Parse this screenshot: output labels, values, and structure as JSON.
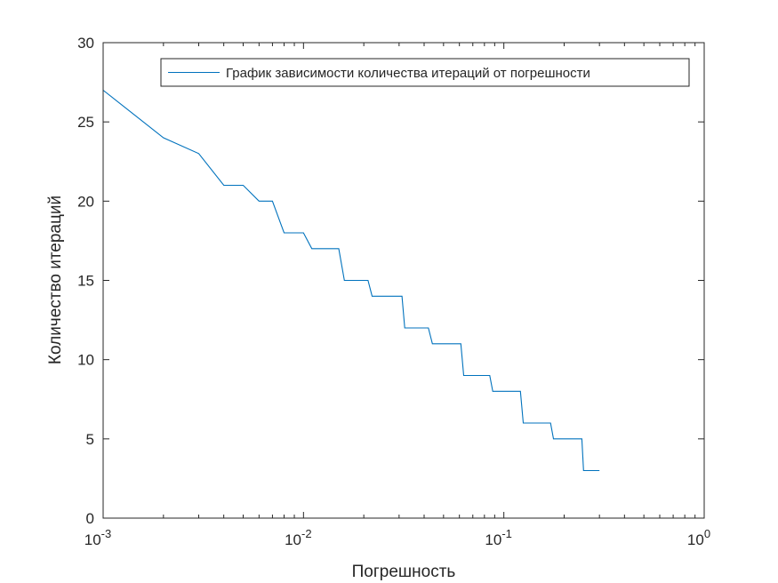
{
  "chart_data": {
    "type": "line",
    "title": "",
    "xlabel": "Погрешность",
    "ylabel": "Количество итераций",
    "xscale": "log",
    "xlim": [
      0.001,
      1
    ],
    "ylim": [
      0,
      30
    ],
    "grid": false,
    "legend_position": "top-right",
    "colors": {
      "series": "#0072BD",
      "axes": "#262626",
      "background": "#ffffff"
    },
    "x_ticks": [
      {
        "value": 0.001,
        "base": "10",
        "exponent": "-3"
      },
      {
        "value": 0.01,
        "base": "10",
        "exponent": "-2"
      },
      {
        "value": 0.1,
        "base": "10",
        "exponent": "-1"
      },
      {
        "value": 1,
        "base": "10",
        "exponent": "0"
      }
    ],
    "y_ticks": [
      {
        "value": 0,
        "label": "0"
      },
      {
        "value": 5,
        "label": "5"
      },
      {
        "value": 10,
        "label": "10"
      },
      {
        "value": 15,
        "label": "15"
      },
      {
        "value": 20,
        "label": "20"
      },
      {
        "value": 25,
        "label": "25"
      },
      {
        "value": 30,
        "label": "30"
      }
    ],
    "series": [
      {
        "name": "График зависимости количества итераций от погрешности",
        "points": [
          [
            0.001,
            27
          ],
          [
            0.002,
            24
          ],
          [
            0.003,
            23
          ],
          [
            0.004,
            21
          ],
          [
            0.005,
            21
          ],
          [
            0.006,
            20
          ],
          [
            0.007,
            20
          ],
          [
            0.008,
            18
          ],
          [
            0.01,
            18
          ],
          [
            0.011,
            17
          ],
          [
            0.015,
            17
          ],
          [
            0.016,
            15
          ],
          [
            0.021,
            15
          ],
          [
            0.022,
            14
          ],
          [
            0.031,
            14
          ],
          [
            0.032,
            12
          ],
          [
            0.042,
            12
          ],
          [
            0.044,
            11
          ],
          [
            0.061,
            11
          ],
          [
            0.063,
            9
          ],
          [
            0.085,
            9
          ],
          [
            0.088,
            8
          ],
          [
            0.121,
            8
          ],
          [
            0.125,
            6
          ],
          [
            0.171,
            6
          ],
          [
            0.177,
            5
          ],
          [
            0.245,
            5
          ],
          [
            0.25,
            3
          ],
          [
            0.3,
            3
          ]
        ]
      }
    ]
  }
}
